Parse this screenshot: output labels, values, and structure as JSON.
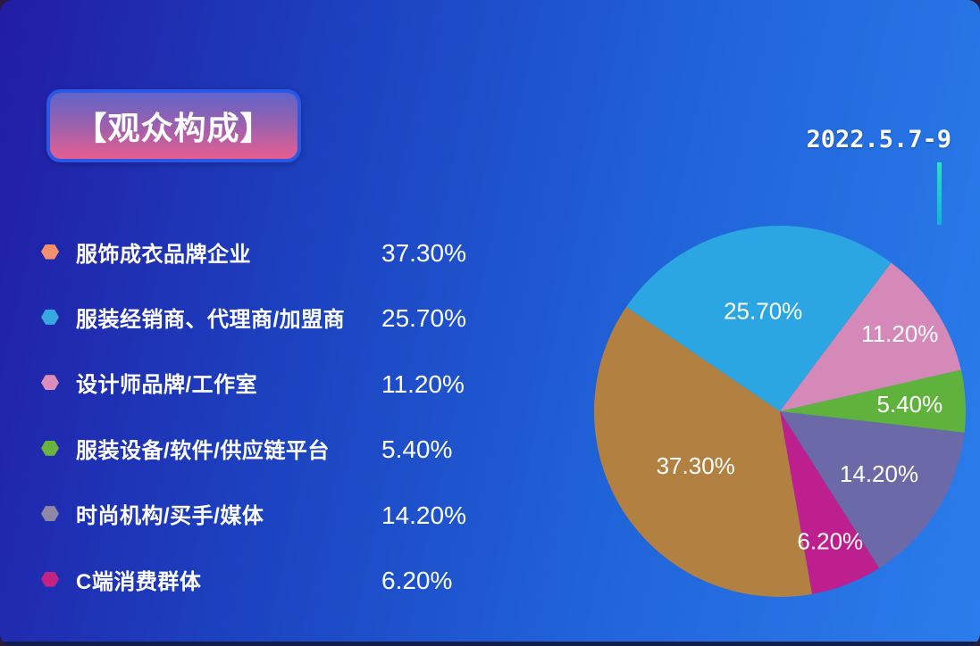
{
  "header": {
    "title": "【观众构成】",
    "date": "2022.5.7-9"
  },
  "chart_data": {
    "type": "pie",
    "title": "【观众构成】",
    "date_annotation": "2022.5.7-9",
    "legend_position": "left",
    "start_angle_deg": 170,
    "clockwise": true,
    "series": [
      {
        "label": "服饰成衣品牌企业",
        "value": 37.3,
        "value_label": "37.30%",
        "slice_color": "#b28142",
        "legend_color": "#f0906e"
      },
      {
        "label": "服装经销商、代理商/加盟商",
        "value": 25.7,
        "value_label": "25.70%",
        "slice_color": "#2ca6e2",
        "legend_color": "#38a7e0"
      },
      {
        "label": "设计师品牌/工作室",
        "value": 11.2,
        "value_label": "11.20%",
        "slice_color": "#d489b8",
        "legend_color": "#dc8dbb"
      },
      {
        "label": "服装设备/软件/供应链平台",
        "value": 5.4,
        "value_label": "5.40%",
        "slice_color": "#5fb33c",
        "legend_color": "#68b43d"
      },
      {
        "label": "时尚机构/买手/媒体",
        "value": 14.2,
        "value_label": "14.20%",
        "slice_color": "#6c69a8",
        "legend_color": "#8e87a6"
      },
      {
        "label": "C端消费群体",
        "value": 6.2,
        "value_label": "6.20%",
        "slice_color": "#be1f8e",
        "legend_color": "#c42383"
      }
    ]
  },
  "style": {
    "background_gradient": [
      "#221ca5",
      "#1c3fbe",
      "#2064d9",
      "#2b7dec"
    ],
    "badge_gradient_top": "#6064c9",
    "badge_gradient_bottom": "#e75e91",
    "badge_border": "#2b57e8",
    "accent_bar_top": "#2ee0c2",
    "accent_bar_bottom": "#12b2d8",
    "bottom_strip": "#101d49",
    "text_color": "#ffffff"
  }
}
